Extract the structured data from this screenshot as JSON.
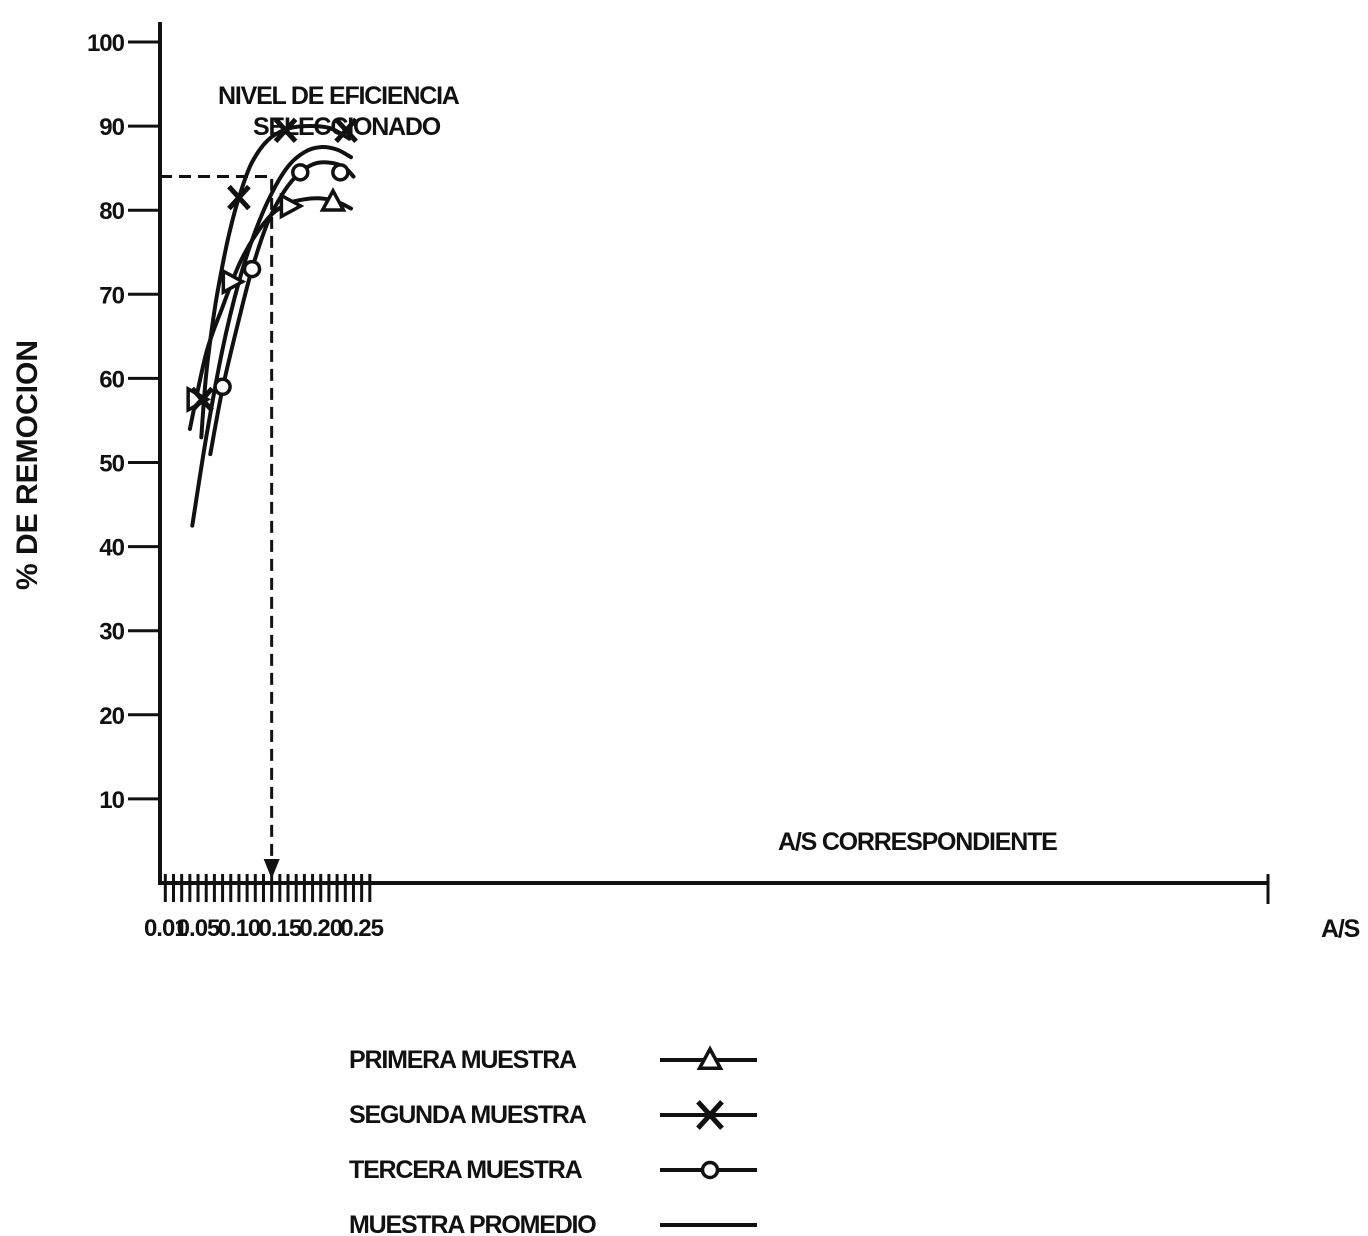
{
  "chart_data": {
    "type": "line",
    "title": "",
    "xlabel": "A/S",
    "ylabel": "% DE REMOCION",
    "xlim": [
      0.01,
      0.27
    ],
    "ylim": [
      0,
      100
    ],
    "x_ticks": [
      "0.01",
      "0.05",
      "0.10",
      "0.15",
      "0.20",
      "0.25"
    ],
    "y_ticks": [
      "100",
      "90",
      "80",
      "70",
      "60",
      "50",
      "40",
      "30",
      "20",
      "10"
    ],
    "grid": false,
    "series": [
      {
        "name": "PRIMERA MUESTRA",
        "marker": "triangle",
        "points": [
          [
            0.048,
            57.5
          ],
          [
            0.091,
            71.5
          ],
          [
            0.162,
            80.5
          ],
          [
            0.215,
            81
          ]
        ],
        "curve": [
          [
            0.04,
            54
          ],
          [
            0.06,
            63
          ],
          [
            0.08,
            68.5
          ],
          [
            0.1,
            73.5
          ],
          [
            0.12,
            77
          ],
          [
            0.14,
            79.5
          ],
          [
            0.16,
            80.8
          ],
          [
            0.18,
            81.3
          ],
          [
            0.2,
            81.4
          ],
          [
            0.22,
            81
          ],
          [
            0.237,
            80.2
          ]
        ]
      },
      {
        "name": "SEGUNDA MUESTRA",
        "marker": "x",
        "points": [
          [
            0.055,
            57.5
          ],
          [
            0.1,
            81.5
          ],
          [
            0.157,
            89.5
          ],
          [
            0.231,
            89.5
          ]
        ],
        "curve": [
          [
            0.054,
            53
          ],
          [
            0.06,
            60.5
          ],
          [
            0.07,
            68
          ],
          [
            0.08,
            73.5
          ],
          [
            0.09,
            78
          ],
          [
            0.1,
            81.5
          ],
          [
            0.115,
            85.5
          ],
          [
            0.135,
            88.3
          ],
          [
            0.157,
            89.6
          ],
          [
            0.18,
            90
          ],
          [
            0.21,
            89.8
          ],
          [
            0.235,
            88.5
          ]
        ]
      },
      {
        "name": "TERCERA MUESTRA",
        "marker": "circle",
        "points": [
          [
            0.08,
            59
          ],
          [
            0.116,
            73
          ],
          [
            0.175,
            84.5
          ],
          [
            0.224,
            84.5
          ]
        ],
        "curve": [
          [
            0.065,
            51
          ],
          [
            0.08,
            58.8
          ],
          [
            0.1,
            67
          ],
          [
            0.116,
            73
          ],
          [
            0.135,
            78.5
          ],
          [
            0.155,
            82.2
          ],
          [
            0.175,
            84.5
          ],
          [
            0.195,
            85.6
          ],
          [
            0.215,
            85.6
          ],
          [
            0.23,
            85
          ],
          [
            0.24,
            84
          ]
        ]
      },
      {
        "name": "MUESTRA PROMEDIO",
        "marker": "none",
        "points": [],
        "curve": [
          [
            0.043,
            42.5
          ],
          [
            0.06,
            53
          ],
          [
            0.08,
            63.5
          ],
          [
            0.1,
            71.5
          ],
          [
            0.12,
            77.5
          ],
          [
            0.14,
            82
          ],
          [
            0.16,
            85.2
          ],
          [
            0.18,
            86.9
          ],
          [
            0.2,
            87.5
          ],
          [
            0.22,
            87.2
          ],
          [
            0.237,
            86.3
          ]
        ]
      }
    ],
    "annotations": {
      "selected_level": {
        "lines": [
          "NIVEL DE EFICIENCIA",
          "SELECCIONADO"
        ],
        "y": 84
      },
      "corresponding": {
        "text": "A/S CORRESPONDIENTE",
        "x": 0.14
      }
    },
    "legend": {
      "placement": "bottom-center",
      "entries": [
        {
          "label": "PRIMERA MUESTRA",
          "marker": "triangle"
        },
        {
          "label": "SEGUNDA MUESTRA",
          "marker": "x"
        },
        {
          "label": "TERCERA MUESTRA",
          "marker": "circle"
        },
        {
          "label": "MUESTRA PROMEDIO",
          "marker": "none"
        }
      ]
    }
  }
}
